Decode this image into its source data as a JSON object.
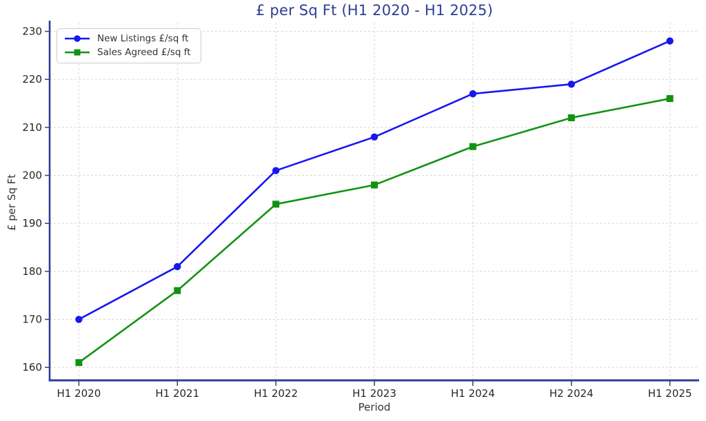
{
  "chart_data": {
    "type": "line",
    "title": "£ per Sq Ft (H1 2020 - H1 2025)",
    "xlabel": "Period",
    "ylabel": "£ per Sq Ft",
    "categories": [
      "H1 2020",
      "H1 2021",
      "H1 2022",
      "H1 2023",
      "H1 2024",
      "H2 2024",
      "H1 2025"
    ],
    "series": [
      {
        "name": "New Listings £/sq ft",
        "values": [
          170,
          181,
          201,
          208,
          217,
          219,
          228
        ],
        "color": "#1717f0",
        "marker": "circle"
      },
      {
        "name": "Sales Agreed £/sq ft",
        "values": [
          161,
          176,
          194,
          198,
          206,
          212,
          216
        ],
        "color": "#129212",
        "marker": "square"
      }
    ],
    "yticks": [
      160,
      170,
      180,
      190,
      200,
      210,
      220,
      230
    ],
    "ylim": [
      157.3,
      231.8
    ],
    "grid": true,
    "grid_style": "dashed",
    "legend_position": "upper-left",
    "colors": {
      "title": "#2c3e94",
      "spine": "#2c3e94",
      "tick": "#2c3e94",
      "grid": "#d8d8d8",
      "tick_label": "#262626",
      "axis_label": "#333333",
      "legend_border": "#cccccc"
    }
  }
}
